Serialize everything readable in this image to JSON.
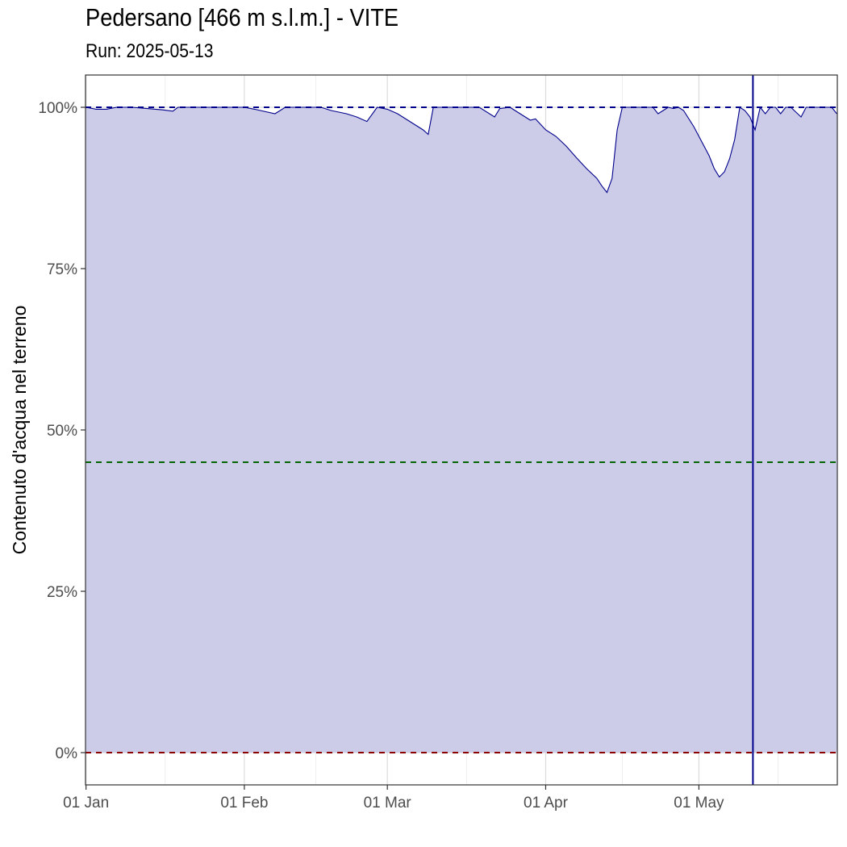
{
  "chart_data": {
    "type": "area",
    "title": "Pedersano [466 m s.l.m.] - VITE",
    "subtitle": "Run: 2025-05-13",
    "ylabel": "Contenuto d'acqua nel terreno",
    "xlabel": "",
    "x_range": [
      "2025-01-01",
      "2025-05-28"
    ],
    "ylim": [
      -0.05,
      1.05
    ],
    "x_ticks": [
      {
        "date": "2025-01-01",
        "label": "01 Jan"
      },
      {
        "date": "2025-02-01",
        "label": "01 Feb"
      },
      {
        "date": "2025-03-01",
        "label": "01 Mar"
      },
      {
        "date": "2025-04-01",
        "label": "01 Apr"
      },
      {
        "date": "2025-05-01",
        "label": "01 May"
      }
    ],
    "y_ticks": [
      {
        "value": 0,
        "label": "0%"
      },
      {
        "value": 0.25,
        "label": "25%"
      },
      {
        "value": 0.5,
        "label": "50%"
      },
      {
        "value": 0.75,
        "label": "75%"
      },
      {
        "value": 1,
        "label": "100%"
      }
    ],
    "grid": true,
    "reference_lines": [
      {
        "value": 1.0,
        "color": "#00008b",
        "style": "dashed"
      },
      {
        "value": 0.45,
        "color": "#006400",
        "style": "dashed"
      },
      {
        "value": 0.0,
        "color": "#8b0000",
        "style": "dashed"
      }
    ],
    "run_date_line": {
      "date": "2025-05-13",
      "color": "#00008b"
    },
    "series": [
      {
        "color": "#00008b",
        "fill": "#cccce8",
        "points": [
          [
            "2025-01-01",
            1.0
          ],
          [
            "2025-01-03",
            0.997
          ],
          [
            "2025-01-05",
            0.997
          ],
          [
            "2025-01-07",
            1.0
          ],
          [
            "2025-01-10",
            1.0
          ],
          [
            "2025-01-13",
            0.998
          ],
          [
            "2025-01-16",
            0.996
          ],
          [
            "2025-01-18",
            0.994
          ],
          [
            "2025-01-19",
            1.0
          ],
          [
            "2025-01-25",
            1.0
          ],
          [
            "2025-02-01",
            1.0
          ],
          [
            "2025-02-03",
            0.997
          ],
          [
            "2025-02-07",
            0.99
          ],
          [
            "2025-02-09",
            1.0
          ],
          [
            "2025-02-16",
            1.0
          ],
          [
            "2025-02-18",
            0.995
          ],
          [
            "2025-02-21",
            0.99
          ],
          [
            "2025-02-23",
            0.985
          ],
          [
            "2025-02-25",
            0.978
          ],
          [
            "2025-02-27",
            1.0
          ],
          [
            "2025-03-01",
            0.997
          ],
          [
            "2025-03-03",
            0.99
          ],
          [
            "2025-03-05",
            0.98
          ],
          [
            "2025-03-08",
            0.965
          ],
          [
            "2025-03-09",
            0.958
          ],
          [
            "2025-03-10",
            1.0
          ],
          [
            "2025-03-19",
            1.0
          ],
          [
            "2025-03-22",
            0.985
          ],
          [
            "2025-03-23",
            0.998
          ],
          [
            "2025-03-25",
            1.0
          ],
          [
            "2025-03-27",
            0.99
          ],
          [
            "2025-03-29",
            0.98
          ],
          [
            "2025-03-30",
            0.982
          ],
          [
            "2025-04-01",
            0.965
          ],
          [
            "2025-04-03",
            0.955
          ],
          [
            "2025-04-05",
            0.94
          ],
          [
            "2025-04-07",
            0.922
          ],
          [
            "2025-04-09",
            0.905
          ],
          [
            "2025-04-11",
            0.89
          ],
          [
            "2025-04-12",
            0.878
          ],
          [
            "2025-04-13",
            0.868
          ],
          [
            "2025-04-14",
            0.89
          ],
          [
            "2025-04-15",
            0.965
          ],
          [
            "2025-04-16",
            1.0
          ],
          [
            "2025-04-22",
            1.0
          ],
          [
            "2025-04-23",
            0.99
          ],
          [
            "2025-04-25",
            1.0
          ],
          [
            "2025-04-26",
            0.998
          ],
          [
            "2025-04-27",
            1.0
          ],
          [
            "2025-04-28",
            0.995
          ],
          [
            "2025-04-30",
            0.97
          ],
          [
            "2025-05-02",
            0.94
          ],
          [
            "2025-05-03",
            0.925
          ],
          [
            "2025-05-04",
            0.905
          ],
          [
            "2025-05-05",
            0.892
          ],
          [
            "2025-05-06",
            0.9
          ],
          [
            "2025-05-07",
            0.92
          ],
          [
            "2025-05-08",
            0.95
          ],
          [
            "2025-05-09",
            1.0
          ],
          [
            "2025-05-10",
            0.995
          ],
          [
            "2025-05-11",
            0.985
          ],
          [
            "2025-05-12",
            0.965
          ],
          [
            "2025-05-13",
            1.0
          ],
          [
            "2025-05-14",
            0.99
          ],
          [
            "2025-05-15",
            1.0
          ],
          [
            "2025-05-16",
            1.0
          ],
          [
            "2025-05-17",
            0.99
          ],
          [
            "2025-05-18",
            1.0
          ],
          [
            "2025-05-19",
            1.0
          ],
          [
            "2025-05-21",
            0.985
          ],
          [
            "2025-05-22",
            1.0
          ],
          [
            "2025-05-27",
            1.0
          ],
          [
            "2025-05-28",
            0.99
          ]
        ]
      }
    ]
  }
}
